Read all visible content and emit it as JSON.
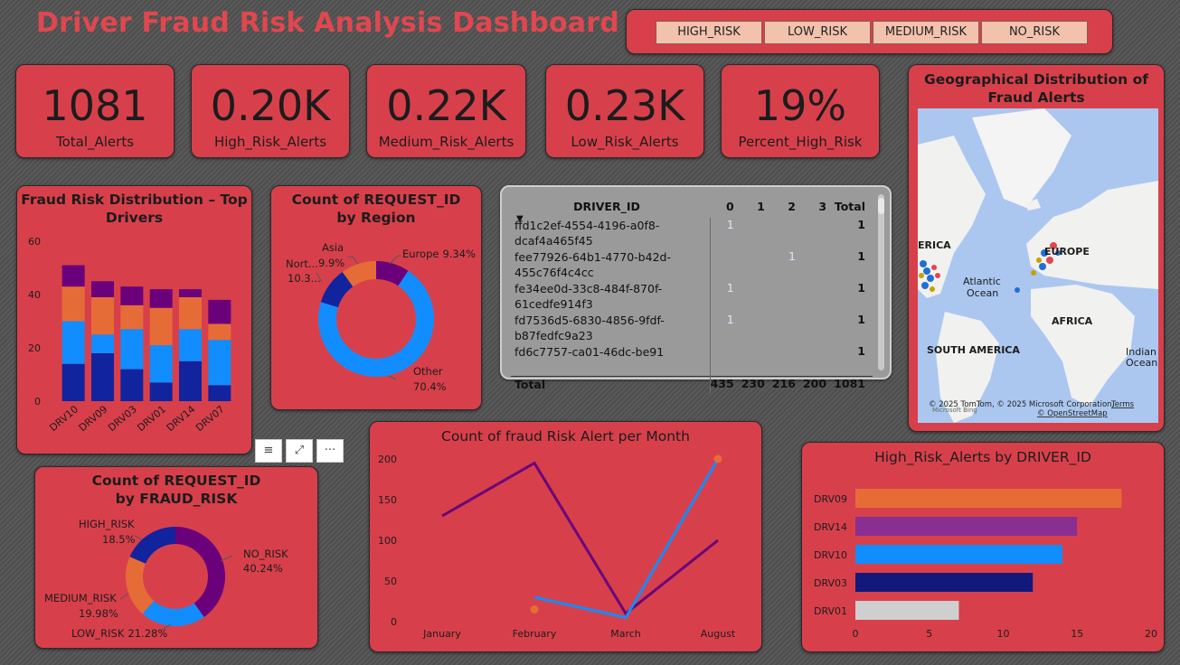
{
  "dashboard": {
    "title": "Driver Fraud Risk Analysis Dashboard"
  },
  "slicer": {
    "options": [
      "HIGH_RISK",
      "LOW_RISK",
      "MEDIUM_RISK",
      "NO_RISK"
    ]
  },
  "kpis": [
    {
      "value": "1081",
      "label": "Total_Alerts"
    },
    {
      "value": "0.20K",
      "label": "High_Risk_Alerts"
    },
    {
      "value": "0.22K",
      "label": "Medium_Risk_Alerts"
    },
    {
      "value": "0.23K",
      "label": "Low_Risk_Alerts"
    },
    {
      "value": "19%",
      "label": "Percent_High_Risk"
    }
  ],
  "map": {
    "title": "Geographical Distribution of Fraud Alerts",
    "labels": {
      "america": "ERICA",
      "europe": "EUROPE",
      "atlantic1": "Atlantic",
      "atlantic2": "Ocean",
      "africa": "AFRICA",
      "south_america": "SOUTH AMERICA",
      "indian1": "Indian",
      "indian2": "Ocean"
    },
    "attribution": "© 2025 TomTom, © 2025 Microsoft Corporation,",
    "terms": "Terms",
    "osm": "© OpenStreetMap",
    "bing": "Microsoft Bing"
  },
  "matrix": {
    "headers": [
      "DRIVER_ID",
      "0",
      "1",
      "2",
      "3",
      "Total"
    ],
    "rows": [
      {
        "line1": "ffd1c2ef-4554-4196-a0f8-",
        "line2": "dcaf4a465f45",
        "c0": "1",
        "c1": "",
        "c2": "",
        "c3": "",
        "total": "1"
      },
      {
        "line1": "fee77926-64b1-4770-b42d-",
        "line2": "455c76f4c4cc",
        "c0": "",
        "c1": "",
        "c2": "1",
        "c3": "",
        "total": "1"
      },
      {
        "line1": "fe34ee0d-33c8-484f-870f-",
        "line2": "61cedfe914f3",
        "c0": "1",
        "c1": "",
        "c2": "",
        "c3": "",
        "total": "1"
      },
      {
        "line1": "fd7536d5-6830-4856-9fdf-",
        "line2": "b87fedfc9a23",
        "c0": "1",
        "c1": "",
        "c2": "",
        "c3": "",
        "total": "1"
      },
      {
        "line1": "fd6c7757-ca01-46dc-be91",
        "line2": "",
        "c0": "",
        "c1": "",
        "c2": "",
        "c3": "",
        "total": "1"
      }
    ],
    "totals": {
      "label": "Total",
      "c0": "435",
      "c1": "230",
      "c2": "216",
      "c3": "200",
      "total": "1081"
    }
  },
  "toolbar": {
    "filter": "≡",
    "focus": "⤢",
    "more": "···"
  },
  "chart_data": [
    {
      "id": "top_drivers",
      "type": "bar",
      "title": "Fraud Risk Distribution – Top Drivers",
      "categories": [
        "DRV10",
        "DRV09",
        "DRV03",
        "DRV01",
        "DRV14",
        "DRV07"
      ],
      "ylim": [
        0,
        60
      ],
      "yticks": [
        0,
        20,
        40,
        60
      ],
      "stacked": true,
      "series": [
        {
          "values": [
            14,
            18,
            12,
            7,
            15,
            6
          ],
          "color": "#12239e"
        },
        {
          "values": [
            16,
            7,
            15,
            14,
            12,
            17
          ],
          "color": "#118dff"
        },
        {
          "values": [
            13,
            14,
            9,
            14,
            12,
            6
          ],
          "color": "#e66c37"
        },
        {
          "values": [
            8,
            6,
            7,
            7,
            3,
            9
          ],
          "color": "#6b007b"
        }
      ]
    },
    {
      "id": "region",
      "type": "pie",
      "donut": true,
      "title": "Count of REQUEST_ID by Region",
      "slices": [
        {
          "label": "Europe",
          "pct": "9.34%",
          "value": 9.34,
          "color": "#6b007b"
        },
        {
          "label": "Other",
          "pct": "70.4%",
          "value": 70.4,
          "color": "#118dff"
        },
        {
          "label": "Nort...",
          "pct": "10.3...",
          "value": 10.36,
          "color": "#12239e"
        },
        {
          "label": "Asia",
          "pct": "9.9%",
          "value": 9.9,
          "color": "#e66c37"
        }
      ]
    },
    {
      "id": "fraud_risk",
      "type": "pie",
      "donut": true,
      "title": "Count of REQUEST_ID by FRAUD_RISK",
      "slices": [
        {
          "label": "NO_RISK",
          "pct": "40.24%",
          "value": 40.24,
          "color": "#6b007b"
        },
        {
          "label": "LOW_RISK",
          "pct": "21.28%",
          "value": 21.28,
          "color": "#118dff"
        },
        {
          "label": "MEDIUM_RISK",
          "pct": "19.98%",
          "value": 19.98,
          "color": "#e66c37"
        },
        {
          "label": "HIGH_RISK",
          "pct": "18.5%",
          "value": 18.5,
          "color": "#12239e"
        }
      ]
    },
    {
      "id": "monthly",
      "type": "line",
      "title": "Count of fraud Risk Alert per Month",
      "categories": [
        "January",
        "February",
        "March",
        "August"
      ],
      "ylim": [
        0,
        200
      ],
      "yticks": [
        0,
        50,
        100,
        150,
        200
      ],
      "series": [
        {
          "values": [
            130,
            195,
            10,
            100
          ],
          "color": "#6b007b"
        },
        {
          "values": [
            null,
            30,
            5,
            200
          ],
          "color": "#118dff"
        },
        {
          "values": [
            null,
            15,
            null,
            200
          ],
          "color": "#e66c37",
          "markers_only": true
        }
      ]
    },
    {
      "id": "high_risk_driver",
      "type": "bar",
      "orientation": "horizontal",
      "title": "High_Risk_Alerts by DRIVER_ID",
      "categories": [
        "DRV09",
        "DRV14",
        "DRV10",
        "DRV03",
        "DRV01"
      ],
      "values": [
        18,
        15,
        14,
        12,
        7
      ],
      "colors": [
        "#e66c37",
        "#8a2f92",
        "#118dff",
        "#12197a",
        "#cfcfcf"
      ],
      "xlim": [
        0,
        20
      ],
      "xticks": [
        0,
        5,
        10,
        15,
        20
      ]
    }
  ]
}
